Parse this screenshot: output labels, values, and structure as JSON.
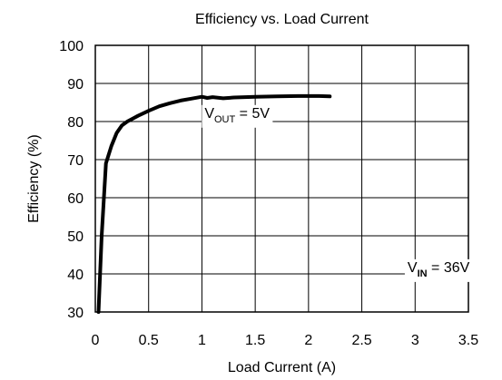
{
  "chart_data": {
    "type": "line",
    "title": "Efficiency vs. Load Current",
    "xlabel": "Load Current (A)",
    "ylabel": "Efficiency (%)",
    "xlim": [
      0,
      3.5
    ],
    "ylim": [
      30,
      100
    ],
    "x_ticks": [
      0,
      0.5,
      1,
      1.5,
      2,
      2.5,
      3,
      3.5
    ],
    "x_tick_labels": [
      "0",
      "0.5",
      "1",
      "1.5",
      "2",
      "2.5",
      "3",
      "3.5"
    ],
    "y_ticks": [
      30,
      40,
      50,
      60,
      70,
      80,
      90,
      100
    ],
    "y_tick_labels": [
      "30",
      "40",
      "50",
      "60",
      "70",
      "80",
      "90",
      "100"
    ],
    "grid": true,
    "series": [
      {
        "color": "#000000",
        "x": [
          0.03,
          0.06,
          0.1,
          0.15,
          0.2,
          0.25,
          0.3,
          0.4,
          0.5,
          0.6,
          0.7,
          0.8,
          0.9,
          1.0,
          1.05,
          1.1,
          1.2,
          1.3,
          1.5,
          1.7,
          1.9,
          2.1,
          2.2
        ],
        "y": [
          30,
          50,
          69,
          73.5,
          77,
          79,
          80,
          81.5,
          82.8,
          84,
          84.8,
          85.5,
          86,
          86.5,
          86.2,
          86.4,
          86.1,
          86.3,
          86.5,
          86.6,
          86.7,
          86.7,
          86.6
        ]
      }
    ],
    "annotations": [
      {
        "text": "V",
        "sub": "OUT",
        "suffix": " = 5V",
        "x": 1.33,
        "y": 81
      },
      {
        "text": "V",
        "sub": "IN",
        "suffix": " = 36V",
        "x": 3.22,
        "y": 40.5
      }
    ]
  }
}
